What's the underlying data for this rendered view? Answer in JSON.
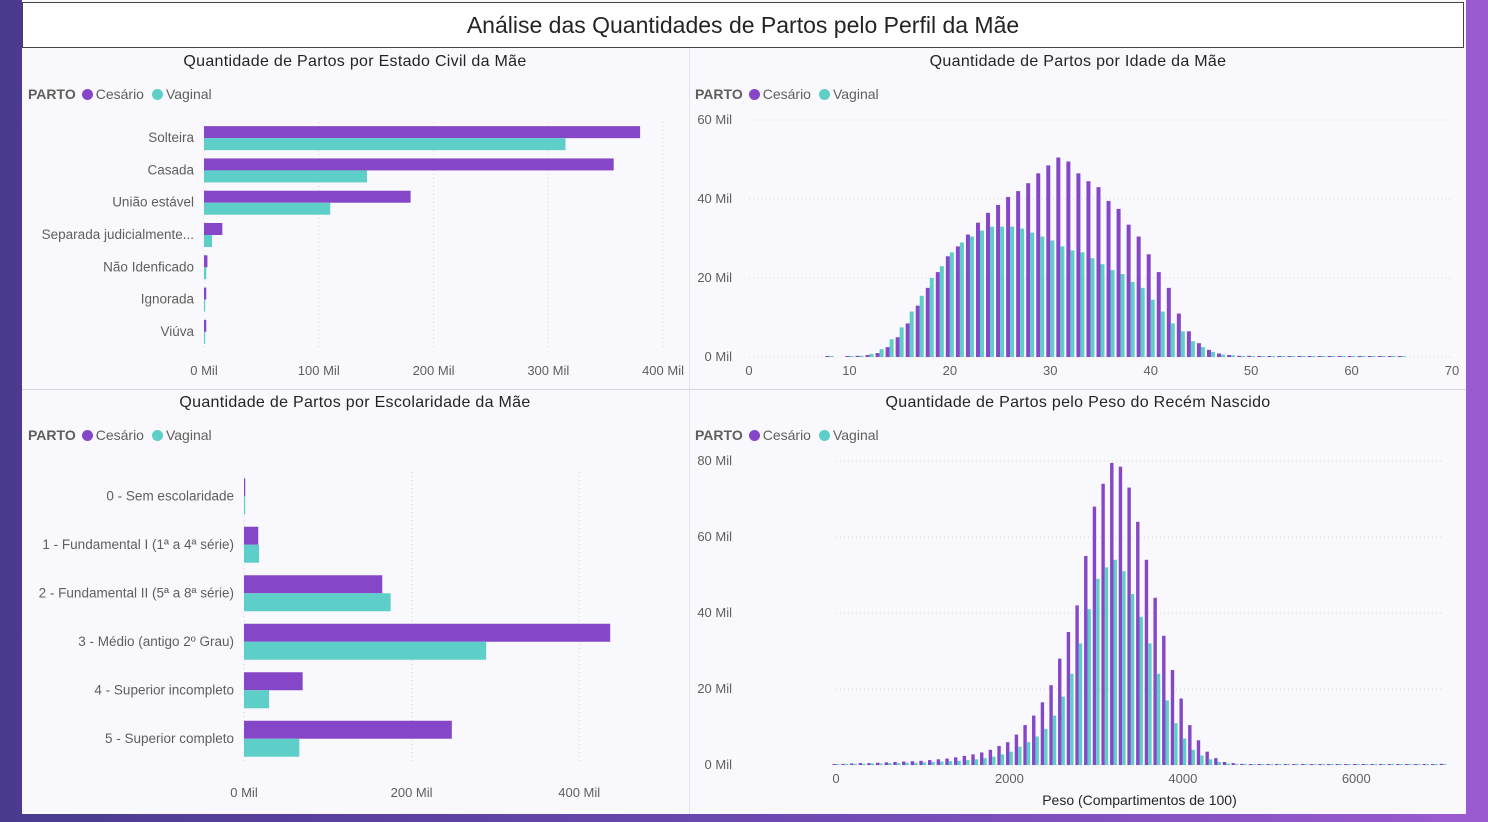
{
  "title": "Análise das Quantidades de Partos pelo Perfil da Mãe",
  "legend": {
    "label": "PARTO",
    "cesario": "Cesário",
    "vaginal": "Vaginal"
  },
  "colors": {
    "cesario": "#8547c7",
    "vaginal": "#5ecfc8"
  },
  "chart_data": [
    {
      "type": "bar",
      "orientation": "horizontal",
      "title": "Quantidade de Partos por Estado Civil da Mãe",
      "categories": [
        "Solteira",
        "Casada",
        "União estável",
        "Separada judicialmente...",
        "Não Idenficado",
        "Ignorada",
        "Viúva"
      ],
      "series": [
        {
          "name": "Cesário",
          "values": [
            380000,
            357000,
            180000,
            16000,
            3000,
            2000,
            2000
          ]
        },
        {
          "name": "Vaginal",
          "values": [
            315000,
            142000,
            110000,
            7000,
            2000,
            1000,
            1000
          ]
        }
      ],
      "xticks": [
        "0 Mil",
        "100 Mil",
        "200 Mil",
        "300 Mil",
        "400 Mil"
      ],
      "xlim": [
        0,
        420000
      ]
    },
    {
      "type": "bar",
      "title": "Quantidade de Partos por Idade da Mãe",
      "x": [
        8,
        10,
        11,
        12,
        13,
        14,
        15,
        16,
        17,
        18,
        19,
        20,
        21,
        22,
        23,
        24,
        25,
        26,
        27,
        28,
        29,
        30,
        31,
        32,
        33,
        34,
        35,
        36,
        37,
        38,
        39,
        40,
        41,
        42,
        43,
        44,
        45,
        46,
        47,
        48,
        49,
        50,
        51,
        52,
        53,
        54,
        55,
        56,
        57,
        58,
        59,
        60,
        61,
        62,
        63,
        64,
        65
      ],
      "series": [
        {
          "name": "Cesário",
          "values": [
            200,
            200,
            300,
            500,
            1000,
            2500,
            5000,
            8500,
            13000,
            17500,
            21500,
            25500,
            28000,
            31000,
            34000,
            36500,
            38500,
            40500,
            42000,
            44000,
            46500,
            48500,
            50500,
            49500,
            46500,
            44500,
            43000,
            39500,
            37500,
            33500,
            30500,
            26000,
            21500,
            17500,
            11000,
            6500,
            3500,
            1800,
            900,
            500,
            300,
            300,
            200,
            200,
            200,
            200,
            200,
            150,
            150,
            150,
            150,
            150,
            120,
            120,
            120,
            120,
            120
          ]
        },
        {
          "name": "Vaginal",
          "values": [
            100,
            200,
            300,
            800,
            2000,
            4500,
            7500,
            11500,
            15500,
            20000,
            23000,
            26500,
            29000,
            30500,
            32000,
            33000,
            33000,
            33000,
            32500,
            31500,
            30500,
            29500,
            28000,
            27000,
            26500,
            25000,
            23500,
            22000,
            21000,
            19000,
            17500,
            14500,
            11500,
            8500,
            6500,
            4000,
            2500,
            1300,
            600,
            400,
            200,
            200,
            150,
            150,
            150,
            150,
            120,
            120,
            120,
            120,
            120,
            120,
            120,
            120,
            120,
            120,
            120
          ]
        }
      ],
      "xticks": [
        "0",
        "10",
        "20",
        "30",
        "40",
        "50",
        "60",
        "70"
      ],
      "yticks": [
        "0 Mil",
        "20 Mil",
        "40 Mil",
        "60 Mil"
      ],
      "xlim": [
        0,
        70
      ],
      "ylim": [
        0,
        60000
      ]
    },
    {
      "type": "bar",
      "orientation": "horizontal",
      "title": "Quantidade de Partos por Escolaridade da Mãe",
      "categories": [
        "0 - Sem escolaridade",
        "1 - Fundamental I (1ª a 4ª série)",
        "2 - Fundamental II (5ª a 8ª série)",
        "3 - Médio (antigo 2º Grau)",
        "4 - Superior incompleto",
        "5 - Superior completo"
      ],
      "series": [
        {
          "name": "Cesário",
          "values": [
            1500,
            17000,
            165000,
            437000,
            70000,
            248000
          ]
        },
        {
          "name": "Vaginal",
          "values": [
            1200,
            18000,
            175000,
            289000,
            30000,
            66000
          ]
        }
      ],
      "xticks": [
        "0 Mil",
        "200 Mil",
        "400 Mil"
      ],
      "xlim": [
        0,
        500000
      ]
    },
    {
      "type": "bar",
      "title": "Quantidade de Partos pelo Peso do Recém Nascido",
      "xlabel": "Peso (Compartimentos de 100)",
      "x": [
        0,
        100,
        200,
        300,
        400,
        500,
        600,
        700,
        800,
        900,
        1000,
        1100,
        1200,
        1300,
        1400,
        1500,
        1600,
        1700,
        1800,
        1900,
        2000,
        2100,
        2200,
        2300,
        2400,
        2500,
        2600,
        2700,
        2800,
        2900,
        3000,
        3100,
        3200,
        3300,
        3400,
        3500,
        3600,
        3700,
        3800,
        3900,
        4000,
        4100,
        4200,
        4300,
        4400,
        4500,
        4600,
        4700,
        4800,
        4900,
        5000,
        5100,
        5200,
        5300,
        5400,
        5500,
        5600,
        5700,
        5800,
        5900,
        6000,
        6100,
        6200,
        6300,
        6400,
        6500,
        6600,
        6700,
        6800,
        6900,
        7000
      ],
      "series": [
        {
          "name": "Cesário",
          "values": [
            100,
            300,
            400,
            500,
            500,
            600,
            700,
            800,
            900,
            1000,
            1100,
            1300,
            1500,
            1700,
            2000,
            2400,
            2800,
            3300,
            4000,
            5000,
            6000,
            8000,
            10500,
            13000,
            16500,
            21000,
            28000,
            35000,
            42000,
            55000,
            68000,
            74000,
            79500,
            78500,
            73000,
            64000,
            54000,
            44000,
            34000,
            25000,
            17500,
            10500,
            6500,
            3500,
            1800,
            800,
            500,
            300,
            200,
            150,
            100,
            100,
            100,
            100,
            100,
            80,
            80,
            80,
            80,
            80,
            60,
            60,
            60,
            60,
            60,
            50,
            50,
            50,
            50,
            50,
            300
          ]
        },
        {
          "name": "Vaginal",
          "values": [
            100,
            200,
            300,
            300,
            400,
            400,
            500,
            500,
            600,
            600,
            700,
            800,
            900,
            1000,
            1100,
            1300,
            1500,
            1800,
            2200,
            2800,
            3500,
            4800,
            6000,
            7500,
            9500,
            13000,
            18000,
            24000,
            32000,
            41000,
            49000,
            52000,
            54000,
            51000,
            45000,
            39000,
            32000,
            24000,
            17000,
            11000,
            7000,
            4000,
            2500,
            1500,
            800,
            400,
            300,
            200,
            150,
            100,
            100,
            80,
            80,
            80,
            80,
            60,
            60,
            60,
            60,
            60,
            50,
            50,
            50,
            50,
            50,
            40,
            40,
            40,
            40,
            40,
            100
          ]
        }
      ],
      "xticks": [
        "0",
        "2000",
        "4000",
        "6000"
      ],
      "yticks": [
        "0 Mil",
        "20 Mil",
        "40 Mil",
        "60 Mil",
        "80 Mil"
      ],
      "xlim": [
        0,
        7000
      ],
      "ylim": [
        0,
        80000
      ]
    }
  ]
}
